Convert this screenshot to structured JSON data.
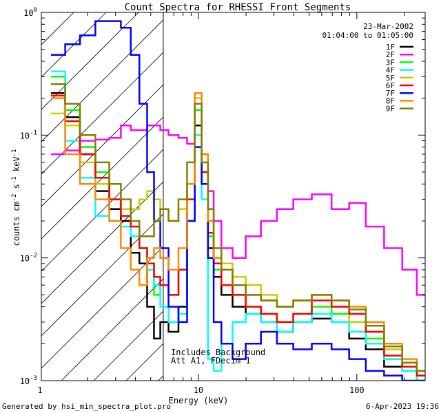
{
  "chart_data": {
    "type": "line",
    "title": "Count Spectra for RHESSI Front Segments",
    "xlabel": "Energy (keV)",
    "ylabel_base": "counts cm",
    "ylabel_exp1": "-2",
    "ylabel_mid": " s",
    "ylabel_exp2": "-1",
    "ylabel_mid2": " keV",
    "ylabel_exp3": "-1",
    "xscale": "log",
    "yscale": "log",
    "xlim": [
      1.02,
      270
    ],
    "ylim": [
      0.001,
      1.0
    ],
    "xticks": [
      {
        "value": 1,
        "label": "1"
      },
      {
        "value": 10,
        "label": "10"
      },
      {
        "value": 100,
        "label": "100"
      }
    ],
    "yticks": [
      {
        "value": 0.001,
        "base": "10",
        "exp": "-3"
      },
      {
        "value": 0.01,
        "base": "10",
        "exp": "-2"
      },
      {
        "value": 0.1,
        "base": "10",
        "exp": "-1"
      },
      {
        "value": 1.0,
        "base": "10",
        "exp": "0"
      }
    ],
    "date": "23-Mar-2002",
    "time_range": "01:04:00 to 01:05:00",
    "annotation_line1": "Includes Background",
    "annotation_line2": "Att A1, FDecim 1",
    "shaded_region_max_keV": 6.0,
    "footer_left": "Generated by hsi_min_spectra_plot.pro",
    "footer_right": "6-Apr-2023 19:36",
    "series": [
      {
        "name": "1F",
        "color": "#000000",
        "x": [
          1.3,
          1.6,
          2.0,
          2.5,
          3.0,
          3.5,
          4.0,
          4.5,
          5.0,
          5.5,
          6.0,
          7.0,
          8.0,
          9.0,
          10.0,
          11.0,
          12.0,
          13.0,
          15.0,
          18.0,
          22.0,
          28.0,
          35.0,
          45.0,
          60.0,
          80.0,
          100.0,
          130.0,
          170.0,
          220.0,
          260.0
        ],
        "y": [
          0.22,
          0.14,
          0.07,
          0.035,
          0.025,
          0.02,
          0.011,
          0.009,
          0.004,
          0.0022,
          0.003,
          0.0025,
          0.004,
          0.02,
          0.12,
          0.04,
          0.012,
          0.007,
          0.005,
          0.004,
          0.0035,
          0.003,
          0.0025,
          0.003,
          0.0032,
          0.003,
          0.0022,
          0.0018,
          0.0013,
          0.0012,
          0.001
        ]
      },
      {
        "name": "2F",
        "color": "#ff00ff",
        "x": [
          1.3,
          1.6,
          2.0,
          2.5,
          3.0,
          3.5,
          4.0,
          4.5,
          5.0,
          5.5,
          6.0,
          7.0,
          8.0,
          9.0,
          10.0,
          11.0,
          12.0,
          13.0,
          15.0,
          18.0,
          22.0,
          28.0,
          35.0,
          45.0,
          60.0,
          80.0,
          100.0,
          130.0,
          170.0,
          220.0,
          260.0
        ],
        "y": [
          0.07,
          0.075,
          0.09,
          0.092,
          0.095,
          0.12,
          0.11,
          0.11,
          0.12,
          0.12,
          0.11,
          0.1,
          0.095,
          0.085,
          0.1,
          0.07,
          0.035,
          0.02,
          0.012,
          0.01,
          0.015,
          0.02,
          0.025,
          0.03,
          0.033,
          0.025,
          0.028,
          0.018,
          0.012,
          0.008,
          0.005
        ]
      },
      {
        "name": "3F",
        "color": "#00ff00",
        "x": [
          1.3,
          1.6,
          2.0,
          2.5,
          3.0,
          3.5,
          4.0,
          4.5,
          5.0,
          5.5,
          6.0,
          7.0,
          8.0,
          9.0,
          10.0,
          11.0,
          12.0,
          13.0,
          15.0,
          18.0,
          22.0,
          28.0,
          35.0,
          45.0,
          60.0,
          80.0,
          100.0,
          130.0,
          170.0,
          220.0,
          260.0
        ],
        "y": [
          0.3,
          0.16,
          0.08,
          0.05,
          0.03,
          0.025,
          0.018,
          0.012,
          0.009,
          0.005,
          0.006,
          0.005,
          0.008,
          0.03,
          0.16,
          0.05,
          0.015,
          0.008,
          0.006,
          0.005,
          0.004,
          0.0035,
          0.003,
          0.0035,
          0.004,
          0.0035,
          0.003,
          0.0022,
          0.0015,
          0.0013,
          0.0011
        ]
      },
      {
        "name": "4F",
        "color": "#00ffff",
        "x": [
          1.3,
          1.6,
          2.0,
          2.5,
          3.0,
          3.5,
          4.0,
          4.5,
          5.0,
          5.5,
          6.0,
          7.0,
          8.0,
          9.0,
          10.0,
          11.0,
          12.0,
          13.0,
          15.0,
          18.0,
          22.0,
          28.0,
          35.0,
          45.0,
          60.0,
          80.0,
          100.0,
          130.0,
          170.0,
          220.0,
          260.0
        ],
        "y": [
          0.33,
          0.09,
          0.045,
          0.022,
          0.02,
          0.018,
          0.015,
          0.012,
          0.008,
          0.006,
          0.004,
          0.003,
          0.0035,
          0.02,
          0.1,
          0.03,
          0.0015,
          0.0012,
          0.002,
          0.003,
          0.0035,
          0.003,
          0.0025,
          0.003,
          0.0035,
          0.003,
          0.0025,
          0.002,
          0.0015,
          0.0012,
          0.001
        ]
      },
      {
        "name": "5F",
        "color": "#cccc00",
        "x": [
          1.3,
          1.6,
          2.0,
          2.5,
          3.0,
          3.5,
          4.0,
          4.5,
          5.0,
          5.5,
          6.0,
          7.0,
          8.0,
          9.0,
          10.0,
          11.0,
          12.0,
          13.0,
          15.0,
          18.0,
          22.0,
          28.0,
          35.0,
          45.0,
          60.0,
          80.0,
          100.0,
          130.0,
          170.0,
          220.0,
          260.0
        ],
        "y": [
          0.15,
          0.12,
          0.06,
          0.04,
          0.03,
          0.025,
          0.025,
          0.03,
          0.035,
          0.03,
          0.025,
          0.02,
          0.025,
          0.04,
          0.2,
          0.06,
          0.02,
          0.012,
          0.009,
          0.007,
          0.006,
          0.005,
          0.004,
          0.0045,
          0.005,
          0.004,
          0.003,
          0.0025,
          0.0018,
          0.0014,
          0.0012
        ]
      },
      {
        "name": "6F",
        "color": "#ff0000",
        "x": [
          1.3,
          1.6,
          2.0,
          2.5,
          3.0,
          3.5,
          4.0,
          4.5,
          5.0,
          5.5,
          6.0,
          7.0,
          8.0,
          9.0,
          10.0,
          11.0,
          12.0,
          13.0,
          15.0,
          18.0,
          22.0,
          28.0,
          35.0,
          45.0,
          60.0,
          80.0,
          100.0,
          130.0,
          170.0,
          220.0,
          260.0
        ],
        "y": [
          0.21,
          0.13,
          0.07,
          0.045,
          0.03,
          0.022,
          0.018,
          0.012,
          0.009,
          0.007,
          0.006,
          0.005,
          0.008,
          0.03,
          0.18,
          0.05,
          0.016,
          0.009,
          0.006,
          0.005,
          0.004,
          0.0035,
          0.003,
          0.0035,
          0.0045,
          0.004,
          0.0035,
          0.0025,
          0.0016,
          0.0013,
          0.0011
        ]
      },
      {
        "name": "7F",
        "color": "#0000ff",
        "x": [
          1.3,
          1.6,
          2.0,
          2.5,
          3.0,
          3.5,
          4.0,
          4.5,
          5.0,
          5.5,
          6.0,
          7.0,
          8.0,
          9.0,
          10.0,
          11.0,
          12.0,
          13.0,
          15.0,
          18.0,
          22.0,
          28.0,
          35.0,
          45.0,
          60.0,
          80.0,
          100.0,
          130.0,
          170.0,
          220.0,
          260.0
        ],
        "y": [
          0.45,
          0.55,
          0.65,
          0.85,
          0.85,
          0.75,
          0.45,
          0.18,
          0.05,
          0.02,
          0.012,
          0.004,
          0.003,
          0.02,
          0.08,
          0.04,
          0.01,
          0.003,
          0.002,
          0.0015,
          0.002,
          0.0025,
          0.002,
          0.0018,
          0.002,
          0.0018,
          0.0015,
          0.0012,
          0.0011,
          0.001,
          0.001
        ]
      },
      {
        "name": "8F",
        "color": "#ff8800",
        "x": [
          1.3,
          1.6,
          2.0,
          2.5,
          3.0,
          3.5,
          4.0,
          4.5,
          5.0,
          5.5,
          6.0,
          7.0,
          8.0,
          9.0,
          10.0,
          11.0,
          12.0,
          13.0,
          15.0,
          18.0,
          22.0,
          28.0,
          35.0,
          45.0,
          60.0,
          80.0,
          100.0,
          130.0,
          170.0,
          220.0,
          260.0
        ],
        "y": [
          0.2,
          0.07,
          0.04,
          0.03,
          0.02,
          0.012,
          0.008,
          0.006,
          0.01,
          0.012,
          0.01,
          0.008,
          0.012,
          0.04,
          0.22,
          0.07,
          0.02,
          0.01,
          0.008,
          0.006,
          0.005,
          0.0045,
          0.004,
          0.0045,
          0.005,
          0.0045,
          0.004,
          0.003,
          0.002,
          0.0015,
          0.0012
        ]
      },
      {
        "name": "9F",
        "color": "#808000",
        "x": [
          1.3,
          1.6,
          2.0,
          2.5,
          3.0,
          3.5,
          4.0,
          4.5,
          5.0,
          5.5,
          6.0,
          7.0,
          8.0,
          9.0,
          10.0,
          11.0,
          12.0,
          13.0,
          15.0,
          18.0,
          22.0,
          28.0,
          35.0,
          45.0,
          60.0,
          80.0,
          100.0,
          130.0,
          170.0,
          220.0,
          260.0
        ],
        "y": [
          0.26,
          0.18,
          0.1,
          0.06,
          0.04,
          0.03,
          0.02,
          0.015,
          0.015,
          0.02,
          0.025,
          0.02,
          0.03,
          0.06,
          0.18,
          0.06,
          0.025,
          0.012,
          0.008,
          0.006,
          0.005,
          0.0045,
          0.004,
          0.0045,
          0.005,
          0.0045,
          0.0038,
          0.0028,
          0.0019,
          0.0014,
          0.0012
        ]
      }
    ]
  }
}
